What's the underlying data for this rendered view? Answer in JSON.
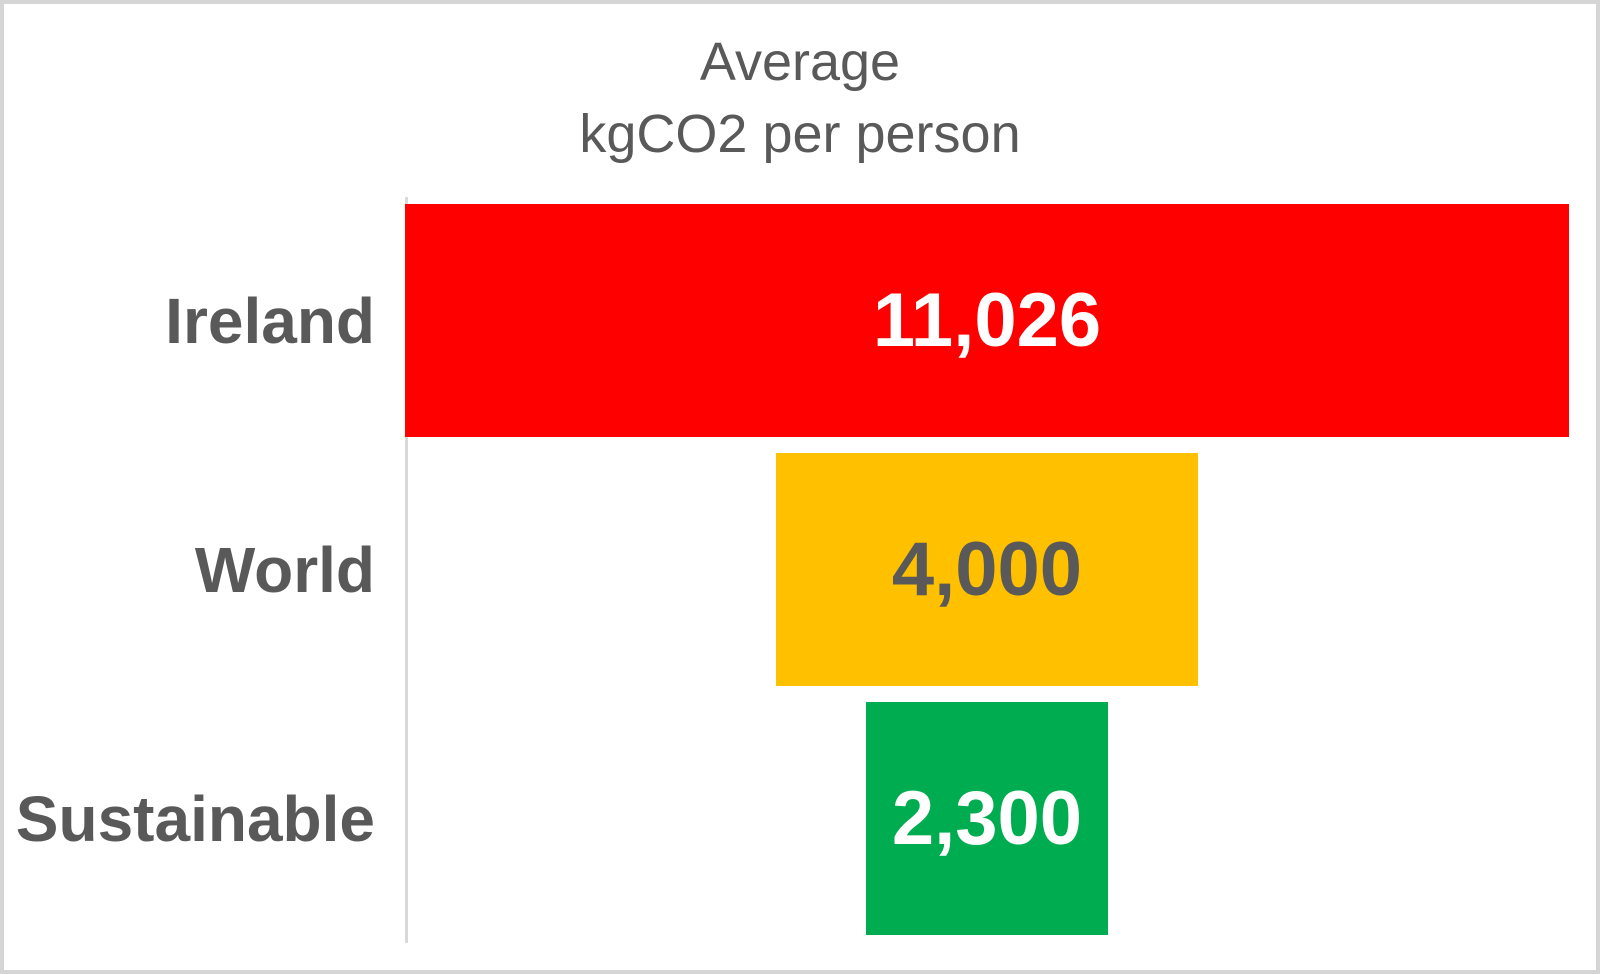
{
  "chart_data": {
    "type": "bar",
    "subtype": "horizontal-centered-funnel",
    "title": "Average kgCO2 per person",
    "title_lines": [
      "Average",
      "kgCO2 per person"
    ],
    "categories": [
      "Ireland",
      "World",
      "Sustainable"
    ],
    "values": [
      11026,
      4000,
      2300
    ],
    "value_labels": [
      "11,026",
      "4,000",
      "2,300"
    ],
    "bar_colors": [
      "#FF0000",
      "#FFC000",
      "#00AC50"
    ],
    "value_label_colors": [
      "#FFFFFF",
      "#595959",
      "#FFFFFF"
    ],
    "xlim": [
      0,
      11026
    ],
    "xlabel": "",
    "ylabel": "",
    "legend_position": "none",
    "grid": "off",
    "axis_line_color": "#D9D9D9",
    "text_color": "#595959",
    "frame_border_color": "#D5D5D5",
    "background_color": "#FFFFFF"
  }
}
